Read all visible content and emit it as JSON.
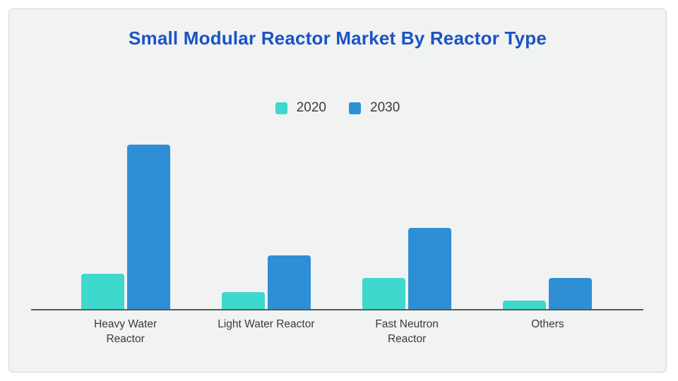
{
  "title": {
    "text": "Small Modular Reactor Market By Reactor Type",
    "color": "#1a53c5"
  },
  "legend": {
    "items": [
      {
        "label": "2020",
        "color": "#3fd8cc"
      },
      {
        "label": "2030",
        "color": "#2e8fd5"
      }
    ]
  },
  "colors": {
    "card_background": "#f1f2f2",
    "page_background": "#ffffff",
    "axis_line": "#58595b",
    "tick_text": "#3a3a3a"
  },
  "chart_data": {
    "type": "bar",
    "title": "Small Modular Reactor Market By Reactor Type",
    "categories": [
      "Heavy Water\nReactor",
      "Light Water Reactor",
      "Fast Neutron\nReactor",
      "Others"
    ],
    "series": [
      {
        "name": "2020",
        "color": "#3fd8cc",
        "values": [
          21.4,
          10.3,
          18.9,
          5.1
        ]
      },
      {
        "name": "2030",
        "color": "#2e8fd5",
        "values": [
          100,
          32.6,
          49.3,
          18.9
        ]
      }
    ],
    "xlabel": "",
    "ylabel": "",
    "ylim": [
      0,
      105
    ],
    "grid": false,
    "legend_position": "top-center"
  }
}
